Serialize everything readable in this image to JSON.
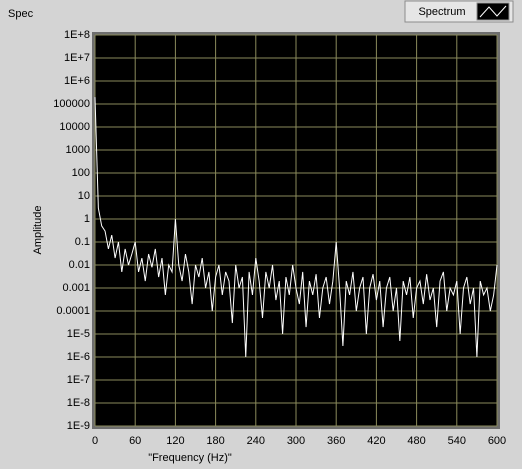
{
  "chart_data": {
    "type": "line",
    "title": "Spec",
    "xlabel": "\"Frequency (Hz)\"",
    "ylabel": "Amplitude",
    "legend": "top-right",
    "grid": true,
    "ylog": true,
    "grid_color": "#8a8a5c",
    "background": "#000000",
    "xlim": [
      0,
      600
    ],
    "xticks": [
      0,
      60,
      120,
      180,
      240,
      300,
      360,
      420,
      480,
      540,
      600
    ],
    "ylim": [
      1e-09,
      100000000.0
    ],
    "yticks": [
      {
        "value": 100000000.0,
        "label": "1E+8"
      },
      {
        "value": 10000000.0,
        "label": "1E+7"
      },
      {
        "value": 1000000.0,
        "label": "1E+6"
      },
      100000,
      10000,
      1000,
      100,
      10,
      1,
      0.1,
      0.01,
      0.001,
      0.0001,
      {
        "value": 1e-05,
        "label": "1E-5"
      },
      {
        "value": 1e-06,
        "label": "1E-6"
      },
      {
        "value": 1e-07,
        "label": "1E-7"
      },
      {
        "value": 1e-08,
        "label": "1E-8"
      },
      {
        "value": 1e-09,
        "label": "1E-9"
      }
    ],
    "x": [
      0,
      5,
      10,
      15,
      20,
      25,
      30,
      35,
      40,
      45,
      50,
      55,
      60,
      65,
      70,
      75,
      80,
      85,
      90,
      95,
      100,
      105,
      110,
      115,
      120,
      125,
      130,
      135,
      140,
      145,
      150,
      155,
      160,
      165,
      170,
      175,
      180,
      185,
      190,
      195,
      200,
      205,
      210,
      215,
      220,
      225,
      230,
      235,
      240,
      245,
      250,
      255,
      260,
      265,
      270,
      275,
      280,
      285,
      290,
      295,
      300,
      305,
      310,
      315,
      320,
      325,
      330,
      335,
      340,
      345,
      350,
      355,
      360,
      365,
      370,
      375,
      380,
      385,
      390,
      395,
      400,
      405,
      410,
      415,
      420,
      425,
      430,
      435,
      440,
      445,
      450,
      455,
      460,
      465,
      470,
      475,
      480,
      485,
      490,
      495,
      500,
      505,
      510,
      515,
      520,
      525,
      530,
      535,
      540,
      545,
      550,
      555,
      560,
      565,
      570,
      575,
      580,
      585,
      590,
      595,
      600
    ],
    "series": [
      {
        "name": "Spectrum",
        "color": "#ffffff",
        "values": [
          200000,
          3,
          0.5,
          0.3,
          0.05,
          0.2,
          0.02,
          0.1,
          0.005,
          0.05,
          0.01,
          0.03,
          0.1,
          0.005,
          0.02,
          0.002,
          0.03,
          0.008,
          0.05,
          0.003,
          0.02,
          0.0005,
          0.01,
          0.005,
          1,
          0.01,
          0.002,
          0.03,
          0.005,
          0.0002,
          0.01,
          0.003,
          0.02,
          0.001,
          0.005,
          0.0001,
          0.003,
          0.01,
          0.0005,
          0.005,
          0.002,
          3e-05,
          0.01,
          0.001,
          0.003,
          1e-06,
          0.005,
          0.0005,
          0.02,
          0.002,
          5e-05,
          0.005,
          0.001,
          0.01,
          0.0003,
          0.002,
          1e-05,
          0.003,
          0.0005,
          0.01,
          0.001,
          0.0002,
          0.005,
          2e-05,
          0.002,
          0.0005,
          0.004,
          5e-05,
          0.001,
          0.003,
          0.0002,
          0.002,
          0.1,
          0.001,
          3e-06,
          0.002,
          0.0005,
          0.005,
          0.0001,
          0.001,
          0.003,
          1e-05,
          0.001,
          0.004,
          0.0003,
          0.002,
          2e-05,
          0.001,
          0.003,
          0.0001,
          0.001,
          5e-06,
          0.002,
          0.0005,
          0.003,
          5e-05,
          0.001,
          0.002,
          0.0002,
          0.004,
          0.0003,
          0.001,
          2e-05,
          0.002,
          0.005,
          0.0001,
          0.001,
          0.0005,
          0.002,
          1e-05,
          0.001,
          0.003,
          0.0002,
          0.001,
          1e-06,
          0.002,
          0.0005,
          0.001,
          0.0001,
          0.0005,
          0.01
        ]
      }
    ]
  }
}
